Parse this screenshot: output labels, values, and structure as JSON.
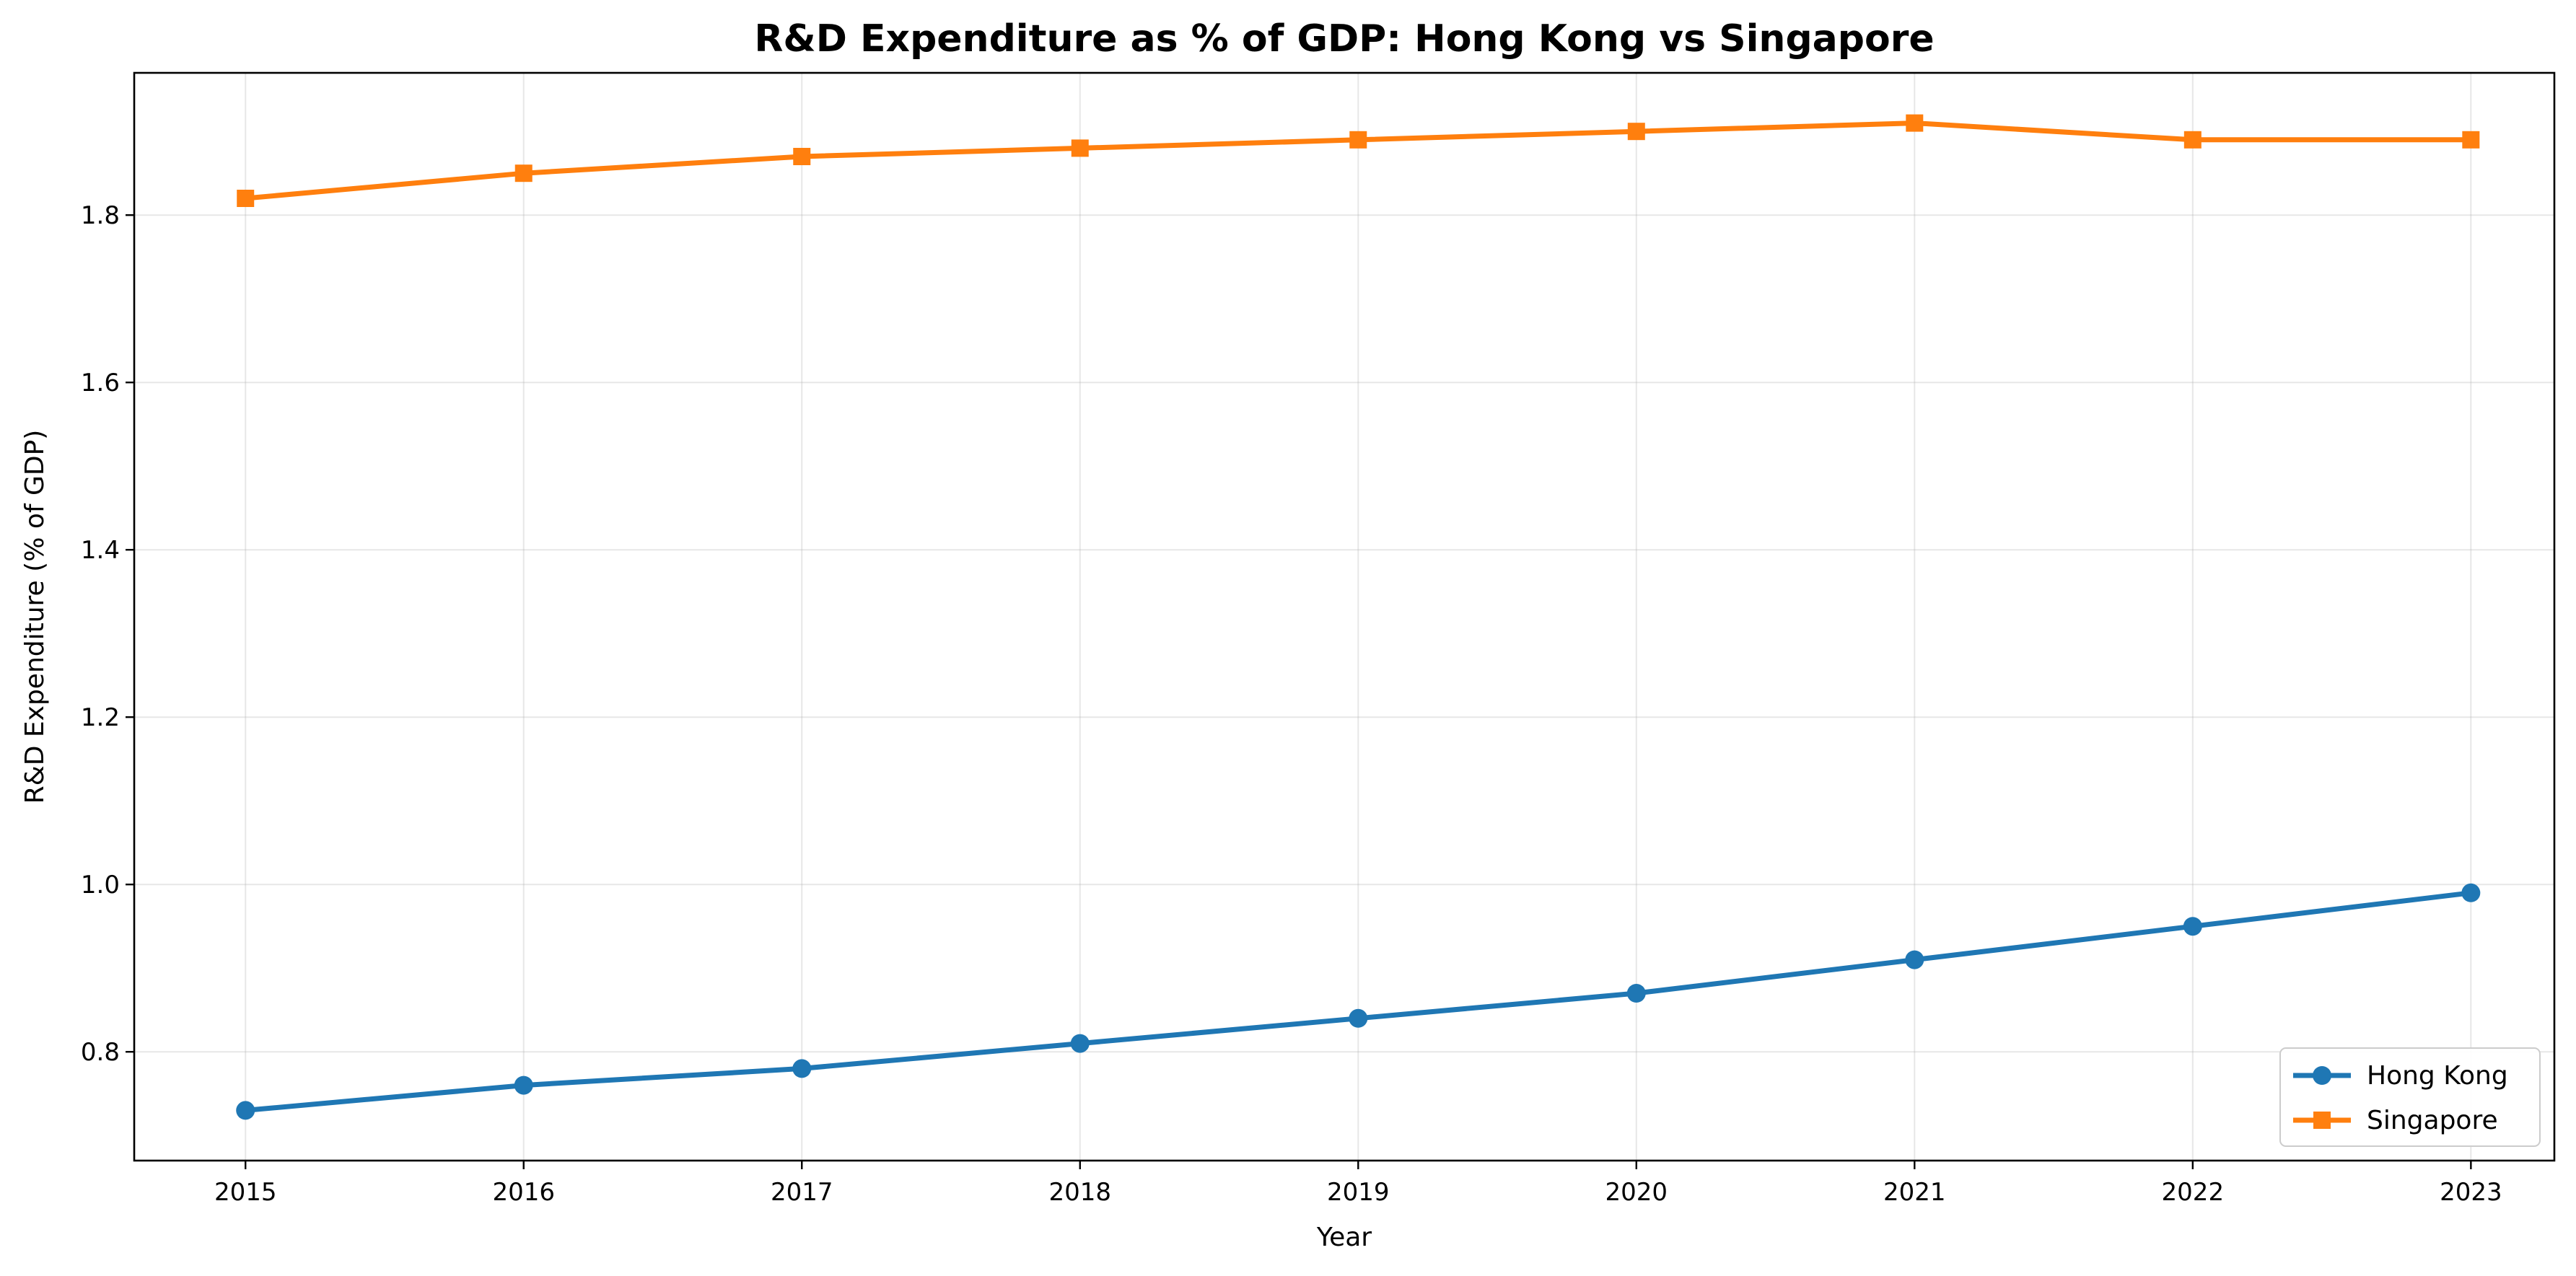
{
  "chart_data": {
    "type": "line",
    "title": "R&D Expenditure as % of GDP: Hong Kong vs Singapore",
    "xlabel": "Year",
    "ylabel": "R&D Expenditure (% of GDP)",
    "x": [
      2015,
      2016,
      2017,
      2018,
      2019,
      2020,
      2021,
      2022,
      2023
    ],
    "xlim": [
      2014.6,
      2023.3
    ],
    "ylim": [
      0.67,
      1.97
    ],
    "yticks": [
      0.8,
      1.0,
      1.2,
      1.4,
      1.6,
      1.8
    ],
    "ytick_labels": [
      "0.8",
      "1.0",
      "1.2",
      "1.4",
      "1.6",
      "1.8"
    ],
    "grid": true,
    "legend_position": "lower-right",
    "series": [
      {
        "name": "Hong Kong",
        "color": "#1f77b4",
        "marker": "circle",
        "values": [
          0.73,
          0.76,
          0.78,
          0.81,
          0.84,
          0.87,
          0.91,
          0.95,
          0.99
        ]
      },
      {
        "name": "Singapore",
        "color": "#ff7f0e",
        "marker": "square",
        "values": [
          1.82,
          1.85,
          1.87,
          1.88,
          1.89,
          1.9,
          1.91,
          1.89,
          1.89
        ]
      }
    ]
  }
}
